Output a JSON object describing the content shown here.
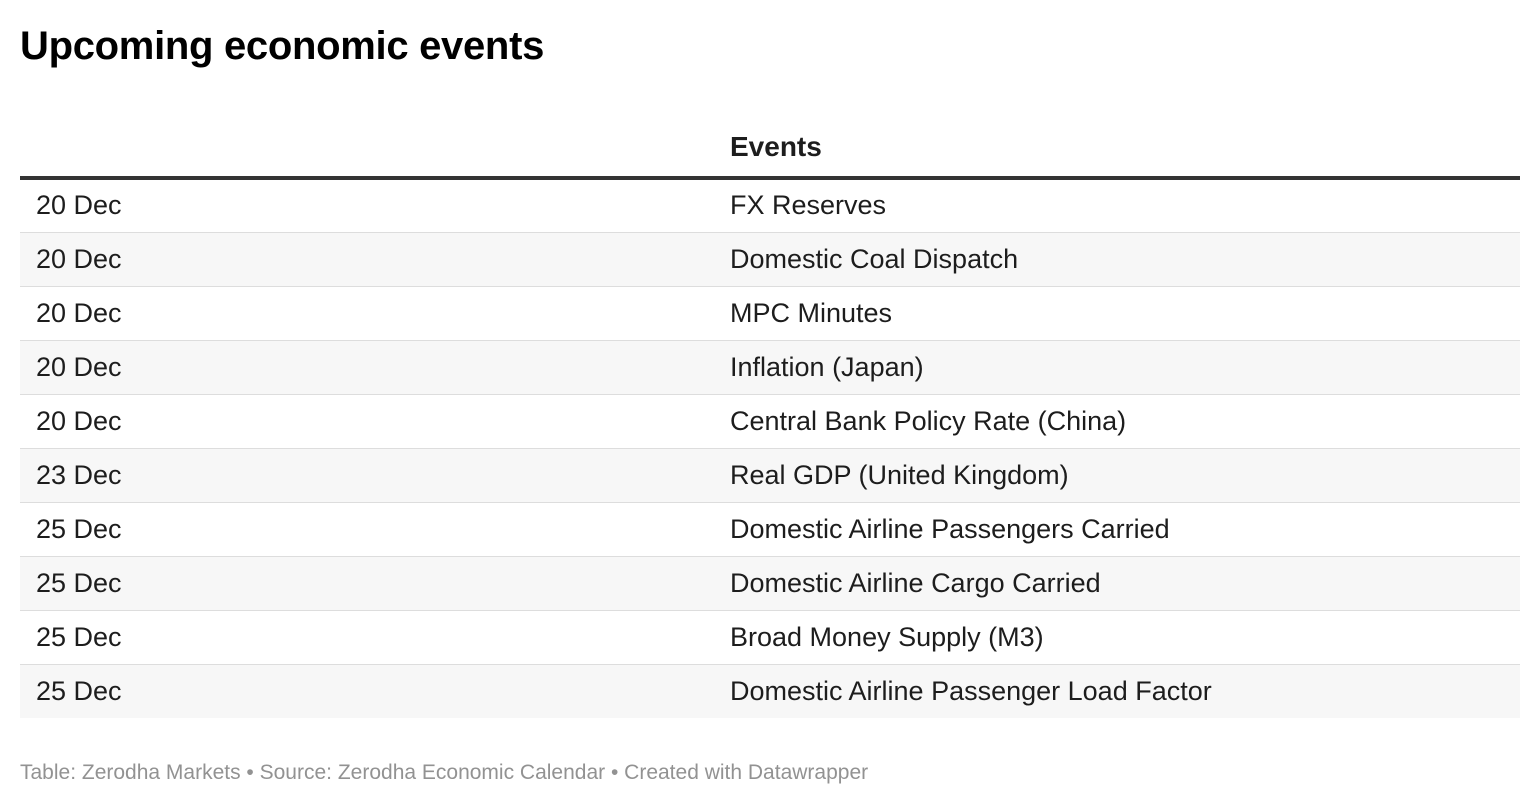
{
  "title": "Upcoming economic events",
  "footer": "Table: Zerodha Markets • Source: Zerodha Economic Calendar • Created with Datawrapper",
  "chart_data": {
    "type": "table",
    "title": "Upcoming economic events",
    "columns": [
      "",
      "Events"
    ],
    "rows": [
      [
        "20 Dec",
        "FX Reserves"
      ],
      [
        "20 Dec",
        "Domestic Coal Dispatch"
      ],
      [
        "20 Dec",
        "MPC Minutes"
      ],
      [
        "20 Dec",
        "Inflation (Japan)"
      ],
      [
        "20 Dec",
        "Central Bank Policy Rate (China)"
      ],
      [
        "23 Dec",
        "Real GDP (United Kingdom)"
      ],
      [
        "25 Dec",
        "Domestic Airline Passengers Carried"
      ],
      [
        "25 Dec",
        "Domestic Airline Cargo Carried"
      ],
      [
        "25 Dec",
        "Broad Money Supply (M3)"
      ],
      [
        "25 Dec",
        "Domestic Airline Passenger Load Factor"
      ]
    ]
  }
}
